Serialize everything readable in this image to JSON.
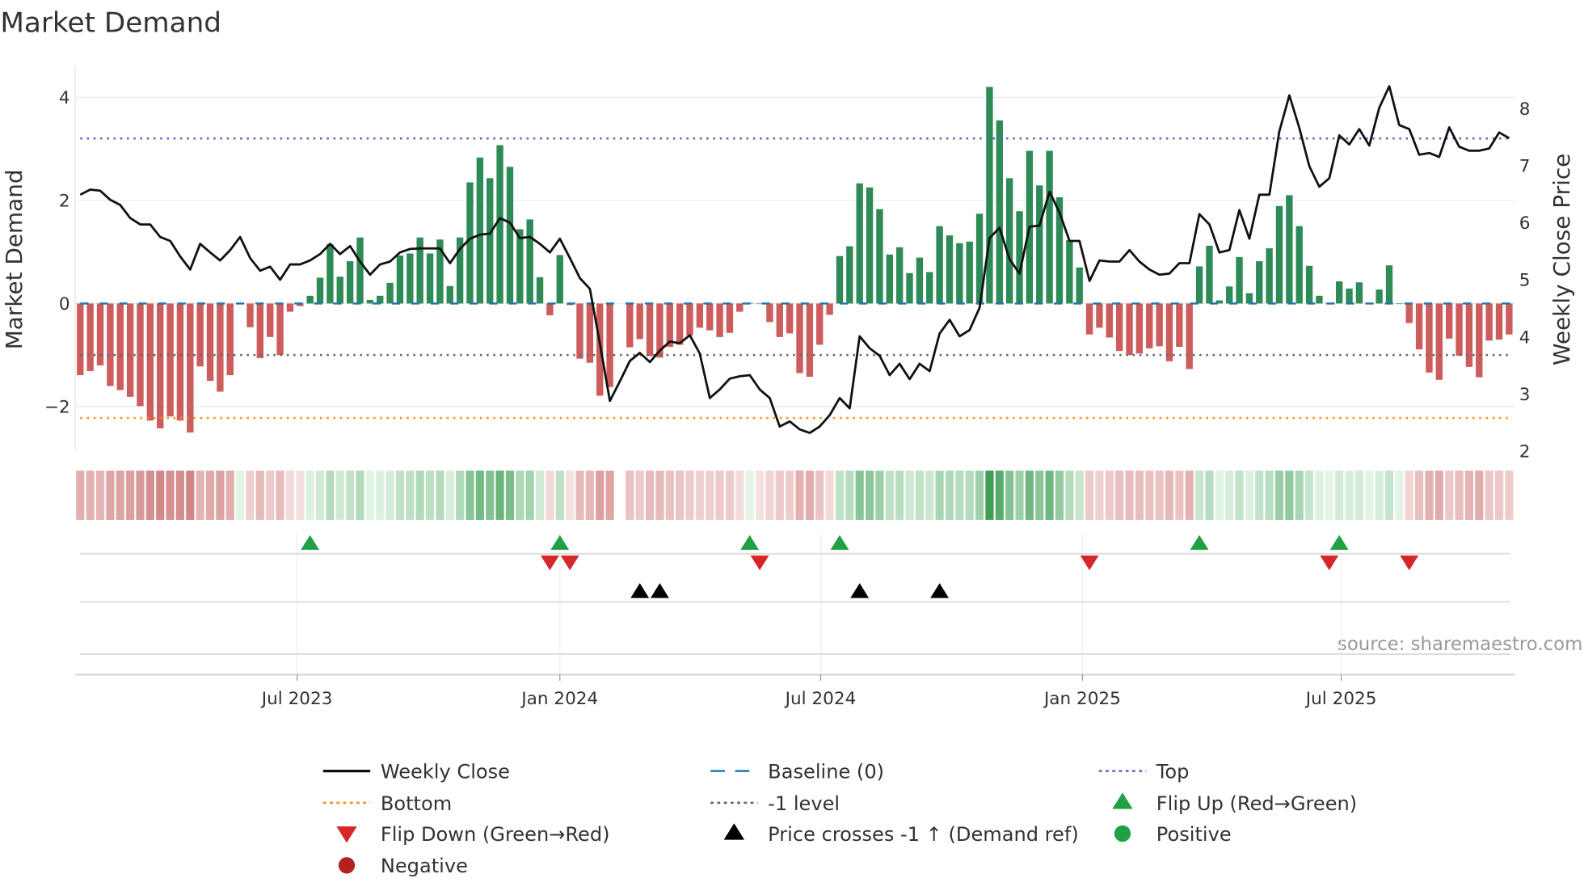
{
  "chart_data": {
    "type": "bar",
    "title": "Market Demand",
    "ylabel": "Market Demand",
    "y2label": "Weekly Close Price",
    "source": "source: sharemaestro.com",
    "ylim": [
      -2.9,
      4.6
    ],
    "y2lim": [
      2,
      8.6
    ],
    "yticks": [
      {
        "v": 4,
        "label": "4"
      },
      {
        "v": 2,
        "label": "2"
      },
      {
        "v": 0,
        "label": "0"
      },
      {
        "v": -2,
        "label": "−2"
      }
    ],
    "y2ticks": [
      {
        "v": 8,
        "label": "8"
      },
      {
        "v": 7,
        "label": "7"
      },
      {
        "v": 6,
        "label": "6"
      },
      {
        "v": 5,
        "label": "5"
      },
      {
        "v": 4,
        "label": "4"
      },
      {
        "v": 3,
        "label": "3"
      },
      {
        "v": 2,
        "label": "2"
      }
    ],
    "xticks": [
      {
        "week": 21.7,
        "label": "Jul 2023"
      },
      {
        "week": 48.0,
        "label": "Jan 2024"
      },
      {
        "week": 74.1,
        "label": "Jul 2024"
      },
      {
        "week": 100.3,
        "label": "Jan 2025"
      },
      {
        "week": 126.2,
        "label": "Jul 2025"
      }
    ],
    "levels": {
      "top": 3.2,
      "bottom": -2.22,
      "minus_one": -1,
      "baseline": 0
    },
    "demand": [
      -1.39,
      -1.31,
      -1.2,
      -1.6,
      -1.68,
      -1.81,
      -1.99,
      -2.27,
      -2.42,
      -2.19,
      -2.27,
      -2.5,
      -1.22,
      -1.5,
      -1.71,
      -1.39,
      0,
      -0.46,
      -1.06,
      -0.65,
      -1.0,
      -0.16,
      -0.05,
      0.15,
      0.5,
      1.15,
      0.52,
      0.82,
      1.28,
      0.07,
      0.15,
      0.4,
      0.93,
      0.97,
      1.28,
      0.97,
      1.24,
      0.34,
      1.28,
      2.35,
      2.83,
      2.43,
      3.07,
      2.65,
      1.44,
      1.63,
      0.51,
      -0.23,
      0.94,
      -0.03,
      -1.07,
      -1.15,
      -1.79,
      -1.62,
      null,
      -0.85,
      -0.69,
      -1.02,
      -1.05,
      -0.84,
      -0.8,
      -0.62,
      -0.47,
      -0.52,
      -0.65,
      -0.57,
      -0.16,
      0.01,
      -0.01,
      -0.36,
      -0.65,
      -0.58,
      -1.35,
      -1.42,
      -0.8,
      -0.22,
      0.92,
      1.11,
      2.33,
      2.25,
      1.83,
      0.95,
      1.09,
      0.59,
      0.89,
      0.61,
      1.5,
      1.32,
      1.17,
      1.2,
      1.74,
      4.2,
      3.55,
      2.43,
      1.79,
      2.96,
      2.29,
      2.96,
      2.06,
      1.23,
      0.7,
      -0.6,
      -0.47,
      -0.66,
      -0.92,
      -1.0,
      -0.97,
      -0.87,
      -0.83,
      -1.12,
      -0.84,
      -1.27,
      0.72,
      1.12,
      0.06,
      0.33,
      0.9,
      0.2,
      0.82,
      1.07,
      1.89,
      2.1,
      1.5,
      0.73,
      0.15,
      0,
      0.43,
      0.29,
      0.41,
      0.01,
      0.27,
      0.74,
      0,
      -0.38,
      -0.89,
      -1.34,
      -1.48,
      -0.68,
      -1.01,
      -1.23,
      -1.43,
      -0.72,
      -0.7,
      -0.6
    ],
    "weekly_close": [
      6.49,
      6.58,
      6.56,
      6.4,
      6.31,
      6.08,
      5.97,
      5.97,
      5.75,
      5.68,
      5.41,
      5.18,
      5.63,
      5.48,
      5.34,
      5.52,
      5.75,
      5.38,
      5.16,
      5.23,
      5.0,
      5.27,
      5.27,
      5.34,
      5.45,
      5.63,
      5.45,
      5.59,
      5.32,
      5.09,
      5.27,
      5.32,
      5.48,
      5.54,
      5.55,
      5.55,
      5.55,
      5.29,
      5.54,
      5.72,
      5.79,
      5.81,
      6.08,
      6.0,
      5.73,
      5.75,
      5.63,
      5.48,
      5.72,
      5.38,
      5.03,
      4.84,
      3.89,
      2.88,
      3.22,
      3.58,
      3.72,
      3.56,
      3.76,
      3.92,
      3.89,
      4.03,
      3.71,
      2.93,
      3.08,
      3.27,
      3.31,
      3.33,
      3.08,
      2.93,
      2.43,
      2.52,
      2.38,
      2.32,
      2.43,
      2.63,
      2.93,
      2.75,
      4.01,
      3.8,
      3.67,
      3.33,
      3.53,
      3.26,
      3.53,
      3.4,
      4.06,
      4.3,
      4.01,
      4.12,
      4.51,
      5.73,
      5.91,
      5.36,
      5.11,
      5.93,
      5.95,
      6.54,
      6.18,
      5.68,
      5.68,
      4.98,
      5.34,
      5.32,
      5.32,
      5.52,
      5.32,
      5.18,
      5.09,
      5.11,
      5.29,
      5.29,
      6.15,
      5.97,
      5.48,
      5.52,
      6.22,
      5.72,
      6.49,
      6.49,
      7.6,
      8.23,
      7.66,
      6.99,
      6.63,
      6.78,
      7.53,
      7.37,
      7.64,
      7.35,
      8.01,
      8.39,
      7.71,
      7.64,
      7.19,
      7.22,
      7.15,
      7.67,
      7.33,
      7.26,
      7.26,
      7.3,
      7.58,
      7.48
    ],
    "flip_up_weeks": [
      23,
      48,
      67,
      76,
      112,
      126
    ],
    "flip_down_weeks": [
      47,
      49,
      68,
      101,
      125,
      133
    ],
    "price_cross_weeks": [
      56,
      58,
      78,
      86
    ],
    "legend": [
      {
        "label": "Weekly Close",
        "kind": "line",
        "color": "#111111"
      },
      {
        "label": "Baseline (0)",
        "kind": "dash",
        "color": "#1f77b4"
      },
      {
        "label": "Top",
        "kind": "dot",
        "color": "#6a5acd"
      },
      {
        "label": "Bottom",
        "kind": "dot",
        "color": "#ff8c1a"
      },
      {
        "label": "-1 level",
        "kind": "dot",
        "color": "#666666"
      },
      {
        "label": "Flip Up (Red→Green)",
        "kind": "tri-up",
        "color": "#22a045"
      },
      {
        "label": "Flip Down (Green→Red)",
        "kind": "tri-down",
        "color": "#d62728"
      },
      {
        "label": "Price crosses -1 ↑ (Demand ref)",
        "kind": "tri-up",
        "color": "#000000"
      },
      {
        "label": "Positive",
        "kind": "circle",
        "color": "#22a045"
      },
      {
        "label": "Negative",
        "kind": "circle",
        "color": "#b22222"
      }
    ],
    "colors": {
      "positive": "#2e8b57",
      "negative": "#cd5c5c",
      "line": "#111111",
      "top": "#6a5acd",
      "bottom": "#ff8c1a",
      "minus_one": "#666666",
      "baseline": "#1f77b4"
    }
  }
}
